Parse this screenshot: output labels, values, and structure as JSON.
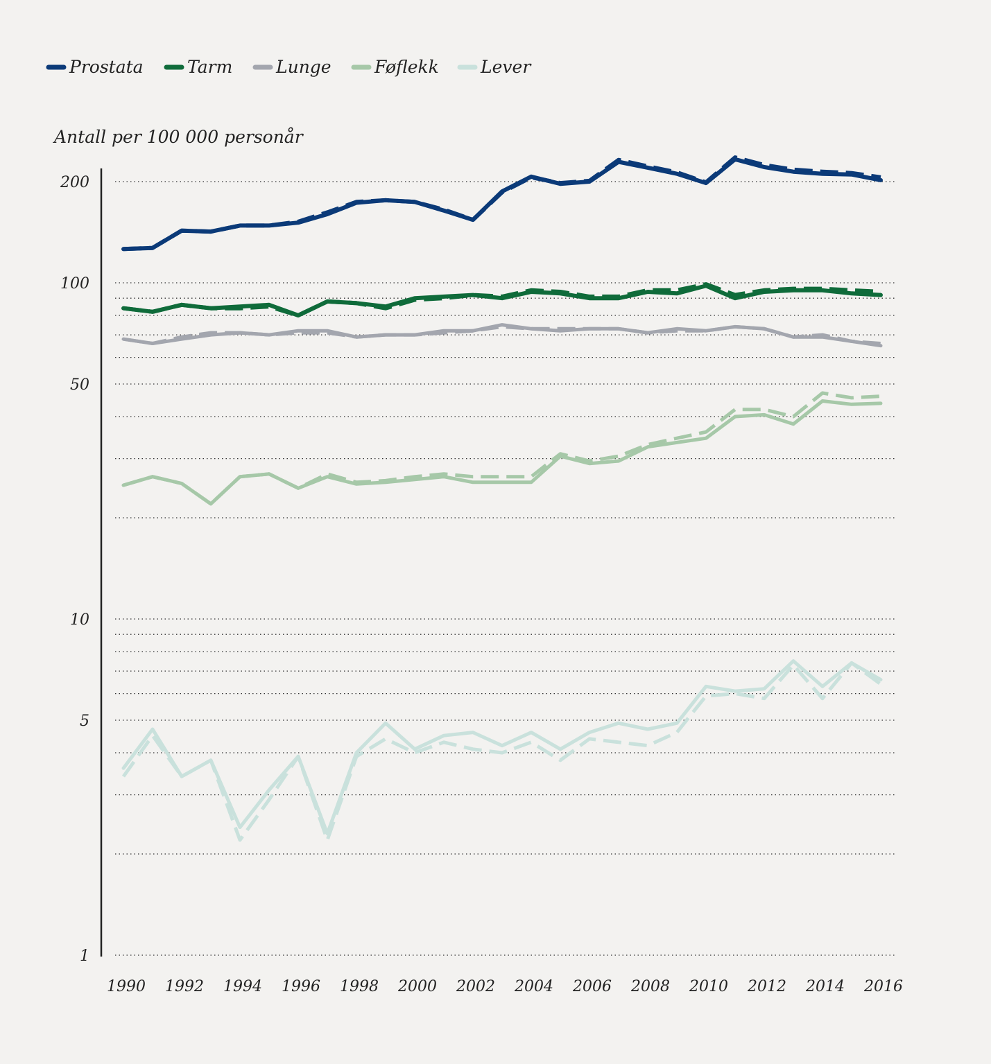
{
  "chart_data": {
    "type": "line",
    "ylabel": "Antall per 100 000 personår",
    "y_scale": "log",
    "ylim": [
      1,
      230
    ],
    "xlim": [
      1990,
      2016
    ],
    "grid": "horizontal-dotted",
    "legend_position": "top-left",
    "x_ticks": [
      "1990",
      "1992",
      "1994",
      "1996",
      "1998",
      "2000",
      "2002",
      "2004",
      "2006",
      "2008",
      "2010",
      "2012",
      "2014",
      "2016"
    ],
    "y_ticks": [
      {
        "value": 200,
        "label": "200"
      },
      {
        "value": 100,
        "label": "100"
      },
      {
        "value": 50,
        "label": "50"
      },
      {
        "value": 10,
        "label": "10"
      },
      {
        "value": 5,
        "label": "5"
      },
      {
        "value": 1,
        "label": "1"
      }
    ],
    "y_grid": [
      200,
      100,
      90,
      80,
      70,
      60,
      50,
      40,
      30,
      20,
      10,
      9,
      8,
      7,
      6,
      5,
      4,
      3,
      2,
      1
    ],
    "x": [
      1990,
      1991,
      1992,
      1993,
      1994,
      1995,
      1996,
      1997,
      1998,
      1999,
      2000,
      2001,
      2002,
      2003,
      2004,
      2005,
      2006,
      2007,
      2008,
      2009,
      2010,
      2011,
      2012,
      2013,
      2014,
      2015,
      2016
    ],
    "legend": [
      {
        "name": "Prostata",
        "color": "#0b3a78"
      },
      {
        "name": "Tarm",
        "color": "#0f6b3a"
      },
      {
        "name": "Lunge",
        "color": "#a3a6ae"
      },
      {
        "name": "Føflekk",
        "color": "#a6c8a8"
      },
      {
        "name": "Lever",
        "color": "#c9e1dc"
      }
    ],
    "series": [
      {
        "legend": "Prostata",
        "style": "solid",
        "color": "#0b3a78",
        "width": 6,
        "values": [
          126,
          127,
          143,
          142,
          148,
          148,
          151,
          160,
          173,
          176,
          174,
          164,
          154,
          187,
          207,
          197,
          200,
          229,
          220,
          211,
          198,
          233,
          221,
          214,
          211,
          210,
          202
        ]
      },
      {
        "legend": "Prostata",
        "style": "dashed",
        "color": "#0b3a78",
        "width": 6,
        "values": [
          126,
          127,
          143,
          142,
          148,
          148,
          152,
          162,
          174,
          176,
          174,
          165,
          154,
          186,
          206,
          198,
          201,
          232,
          222,
          213,
          199,
          236,
          224,
          217,
          214,
          212,
          206
        ]
      },
      {
        "legend": "Tarm",
        "style": "solid",
        "color": "#0f6b3a",
        "width": 6,
        "values": [
          84,
          82,
          86,
          84,
          85,
          86,
          80,
          88,
          87,
          85,
          90,
          91,
          92,
          90,
          94,
          93,
          90,
          90,
          94,
          93,
          98,
          90,
          94,
          95,
          95,
          93,
          92
        ]
      },
      {
        "legend": "Tarm",
        "style": "dashed",
        "color": "#0f6b3a",
        "width": 6,
        "values": [
          84,
          82,
          86,
          84,
          84,
          85,
          80,
          88,
          87,
          84,
          89,
          90,
          92,
          91,
          95,
          94,
          91,
          91,
          95,
          95,
          99,
          92,
          95,
          96,
          96,
          95,
          94
        ]
      },
      {
        "legend": "Lunge",
        "style": "solid",
        "color": "#a3a6ae",
        "width": 5,
        "values": [
          68,
          66,
          68,
          70,
          71,
          70,
          72,
          72,
          69,
          70,
          70,
          72,
          72,
          75,
          73,
          72,
          73,
          73,
          71,
          73,
          72,
          74,
          73,
          69,
          69,
          67,
          65
        ]
      },
      {
        "legend": "Lunge",
        "style": "dashed",
        "color": "#a3a6ae",
        "width": 5,
        "values": [
          68,
          66,
          69,
          71,
          71,
          70,
          71,
          71,
          69,
          70,
          70,
          71,
          72,
          74,
          73,
          73,
          73,
          73,
          71,
          72,
          72,
          74,
          73,
          69,
          70,
          67,
          66
        ]
      },
      {
        "legend": "Føflekk",
        "style": "solid",
        "color": "#a6c8a8",
        "width": 5,
        "values": [
          25,
          26.5,
          25.3,
          22,
          26.5,
          27,
          24.5,
          26.5,
          25.2,
          25.5,
          26,
          26.5,
          25.5,
          25.5,
          25.5,
          30.5,
          29,
          29.5,
          32.5,
          33.5,
          34.5,
          40,
          40.5,
          38,
          44.5,
          43.5,
          43.8
        ]
      },
      {
        "legend": "Føflekk",
        "style": "dashed",
        "color": "#a6c8a8",
        "width": 5,
        "values": [
          25,
          26.5,
          25.3,
          22,
          26.5,
          27,
          24.5,
          27,
          25.5,
          25.8,
          26.5,
          27,
          26.5,
          26.5,
          26.5,
          31,
          29.5,
          30.5,
          33,
          34.5,
          36,
          42,
          42,
          40,
          47,
          45.5,
          46
        ]
      },
      {
        "legend": "Lever",
        "style": "solid",
        "color": "#c9e1dc",
        "width": 5,
        "values": [
          3.6,
          4.7,
          3.4,
          3.8,
          2.4,
          3.1,
          3.9,
          2.3,
          4.0,
          4.9,
          4.1,
          4.5,
          4.6,
          4.2,
          4.6,
          4.1,
          4.6,
          4.9,
          4.7,
          4.9,
          6.3,
          6.1,
          6.2,
          7.5,
          6.3,
          7.4,
          6.6
        ]
      },
      {
        "legend": "Lever",
        "style": "dashed",
        "color": "#c9e1dc",
        "width": 5,
        "values": [
          3.4,
          4.5,
          3.4,
          3.8,
          2.2,
          2.9,
          3.9,
          2.2,
          3.9,
          4.4,
          4.0,
          4.3,
          4.1,
          4.0,
          4.3,
          3.8,
          4.4,
          4.3,
          4.2,
          4.6,
          5.9,
          6.0,
          5.8,
          7.3,
          5.8,
          7.4,
          6.4
        ]
      }
    ]
  }
}
